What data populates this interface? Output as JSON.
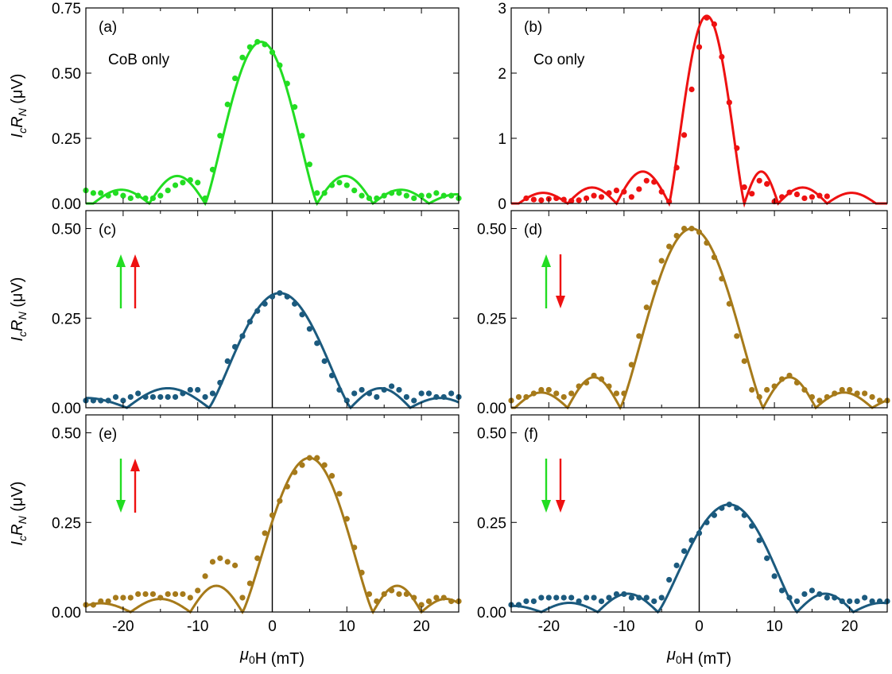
{
  "colors": {
    "green": "#22dd22",
    "red": "#ee1111",
    "blue": "#1b5a7e",
    "brown": "#a67a1a",
    "axis": "#000000"
  },
  "labels": {
    "xlabel_mu": "μ",
    "xlabel_sub": "0",
    "xlabel_rest": "H (mT)",
    "ylabel_I": "I",
    "ylabel_c": "c",
    "ylabel_R": "R",
    "ylabel_N": "N",
    "ylabel_unit": " (μV)"
  },
  "chart_data": [
    {
      "id": "a",
      "panel_label": "(a)",
      "annotation": "CoB only",
      "type": "scatter+line",
      "color": "green",
      "xlim": [
        -25,
        25
      ],
      "ylim": [
        0,
        0.75
      ],
      "yticks": [
        "0.00",
        "0.25",
        "0.50",
        "0.75"
      ],
      "ytick_values": [
        0,
        0.25,
        0.5,
        0.75
      ],
      "xticks": [
        "-20",
        "-10",
        "0",
        "10",
        "20"
      ],
      "xtick_values": [
        -20,
        -10,
        0,
        10,
        20
      ],
      "show_xticklabels": false,
      "arrows": [],
      "fit_peak": 0.62,
      "fit_center": -1.5,
      "fit_zeros": [
        -16.5,
        -9,
        6,
        13.5,
        21
      ],
      "series": [
        {
          "kind": "measured",
          "x": [
            -25,
            -24,
            -23,
            -22,
            -21,
            -20,
            -19,
            -18,
            -17,
            -16,
            -15,
            -14,
            -13,
            -12,
            -11,
            -10,
            -9,
            -8,
            -7,
            -6,
            -5,
            -4,
            -3,
            -2,
            -1,
            0,
            1,
            2,
            3,
            4,
            5,
            6,
            7,
            8,
            9,
            10,
            11,
            12,
            13,
            14,
            15,
            16,
            17,
            18,
            19,
            20,
            21,
            22,
            23,
            24,
            25
          ],
          "y": [
            0.05,
            0.04,
            0.04,
            0.03,
            0.04,
            0.03,
            0.02,
            0.03,
            0.02,
            0.02,
            0.03,
            0.05,
            0.07,
            0.08,
            0.09,
            0.08,
            0.02,
            0.13,
            0.26,
            0.38,
            0.48,
            0.56,
            0.6,
            0.62,
            0.61,
            0.58,
            0.53,
            0.46,
            0.37,
            0.26,
            0.15,
            0.04,
            0.04,
            0.07,
            0.08,
            0.07,
            0.05,
            0.03,
            0.02,
            0.02,
            0.03,
            0.04,
            0.04,
            0.03,
            0.02,
            0.03,
            0.03,
            0.04,
            0.03,
            0.03,
            0.02
          ]
        }
      ]
    },
    {
      "id": "b",
      "panel_label": "(b)",
      "annotation": "Co only",
      "type": "scatter+line",
      "color": "red",
      "xlim": [
        -25,
        25
      ],
      "ylim": [
        0,
        3
      ],
      "yticks": [
        "0",
        "1",
        "2",
        "3"
      ],
      "ytick_values": [
        0,
        1,
        2,
        3
      ],
      "xticks": [
        "-20",
        "-10",
        "0",
        "10",
        "20"
      ],
      "xtick_values": [
        -20,
        -10,
        0,
        10,
        20
      ],
      "show_xticklabels": false,
      "arrows": [],
      "fit_peak": 2.88,
      "fit_center": 1.0,
      "fit_zeros": [
        -17.5,
        -11,
        -4,
        6,
        10.5,
        17
      ],
      "series": [
        {
          "kind": "measured",
          "x": [
            -23,
            -22,
            -21,
            -20,
            -19,
            -18,
            -17,
            -16,
            -15,
            -14,
            -13,
            -12,
            -11,
            -10,
            -9,
            -8,
            -7,
            -6,
            -5,
            -4,
            -3,
            -2,
            -1,
            0,
            1,
            2,
            3,
            4,
            5,
            6,
            7,
            8,
            9,
            10,
            11,
            12,
            13,
            14,
            15,
            16,
            17
          ],
          "y": [
            0.08,
            0.06,
            0.05,
            0.07,
            0.08,
            0.06,
            0.04,
            0.05,
            0.08,
            0.12,
            0.1,
            0.16,
            0.2,
            0.18,
            0.1,
            0.22,
            0.35,
            0.33,
            0.18,
            0.03,
            0.55,
            1.05,
            1.75,
            2.4,
            2.85,
            2.75,
            2.25,
            1.55,
            0.85,
            0.25,
            0.15,
            0.35,
            0.3,
            0.03,
            0.1,
            0.17,
            0.14,
            0.08,
            0.1,
            0.12,
            0.11
          ]
        }
      ]
    },
    {
      "id": "c",
      "panel_label": "(c)",
      "annotation": "",
      "type": "scatter+line",
      "color": "blue",
      "xlim": [
        -25,
        25
      ],
      "ylim": [
        0,
        0.55
      ],
      "yticks": [
        "0.00",
        "0.25",
        "0.50"
      ],
      "ytick_values": [
        0,
        0.25,
        0.5
      ],
      "xticks": [
        "-20",
        "-10",
        "0",
        "10",
        "20"
      ],
      "xtick_values": [
        -20,
        -10,
        0,
        10,
        20
      ],
      "show_xticklabels": false,
      "arrows": [
        {
          "dir": "up",
          "color": "green"
        },
        {
          "dir": "up",
          "color": "red"
        }
      ],
      "fit_peak": 0.32,
      "fit_center": 1.0,
      "fit_zeros": [
        -19.5,
        -8.5,
        10.5,
        18.5
      ],
      "series": [
        {
          "kind": "measured",
          "x": [
            -25,
            -24,
            -23,
            -22,
            -21,
            -20,
            -19,
            -18,
            -17,
            -16,
            -15,
            -14,
            -13,
            -12,
            -11,
            -10,
            -9,
            -8,
            -7,
            -6,
            -5,
            -4,
            -3,
            -2,
            -1,
            0,
            1,
            2,
            3,
            4,
            5,
            6,
            7,
            8,
            9,
            10,
            11,
            12,
            13,
            14,
            15,
            16,
            17,
            18,
            19,
            20,
            21,
            22,
            23,
            24,
            25
          ],
          "y": [
            0.02,
            0.02,
            0.02,
            0.02,
            0.03,
            0.02,
            0.03,
            0.04,
            0.03,
            0.03,
            0.03,
            0.03,
            0.03,
            0.04,
            0.05,
            0.05,
            0.03,
            0.04,
            0.07,
            0.13,
            0.17,
            0.2,
            0.24,
            0.27,
            0.29,
            0.31,
            0.32,
            0.31,
            0.29,
            0.26,
            0.22,
            0.18,
            0.13,
            0.09,
            0.05,
            0.02,
            0.04,
            0.05,
            0.04,
            0.03,
            0.05,
            0.06,
            0.05,
            0.03,
            0.02,
            0.04,
            0.04,
            0.03,
            0.03,
            0.04,
            0.03
          ]
        }
      ]
    },
    {
      "id": "d",
      "panel_label": "(d)",
      "annotation": "",
      "type": "scatter+line",
      "color": "brown",
      "xlim": [
        -25,
        25
      ],
      "ylim": [
        0,
        0.55
      ],
      "yticks": [
        "0.00",
        "0.25",
        "0.50"
      ],
      "ytick_values": [
        0,
        0.25,
        0.5
      ],
      "xticks": [
        "-20",
        "-10",
        "0",
        "10",
        "20"
      ],
      "xtick_values": [
        -20,
        -10,
        0,
        10,
        20
      ],
      "show_xticklabels": false,
      "arrows": [
        {
          "dir": "up",
          "color": "green"
        },
        {
          "dir": "down",
          "color": "red"
        }
      ],
      "fit_peak": 0.5,
      "fit_center": -1.0,
      "fit_zeros": [
        -17.5,
        -10.5,
        8.5,
        15.5,
        23
      ],
      "series": [
        {
          "kind": "measured",
          "x": [
            -25,
            -24,
            -23,
            -22,
            -21,
            -20,
            -19,
            -18,
            -17,
            -16,
            -15,
            -14,
            -13,
            -12,
            -11,
            -10,
            -9,
            -8,
            -7,
            -6,
            -5,
            -4,
            -3,
            -2,
            -1,
            0,
            1,
            2,
            3,
            4,
            5,
            6,
            7,
            8,
            9,
            10,
            11,
            12,
            13,
            14,
            15,
            16,
            17,
            18,
            19,
            20,
            21,
            22,
            23,
            24,
            25
          ],
          "y": [
            0.02,
            0.03,
            0.03,
            0.04,
            0.05,
            0.05,
            0.04,
            0.03,
            0.04,
            0.06,
            0.07,
            0.09,
            0.08,
            0.06,
            0.04,
            0.04,
            0.12,
            0.2,
            0.28,
            0.35,
            0.41,
            0.45,
            0.48,
            0.5,
            0.5,
            0.49,
            0.46,
            0.42,
            0.36,
            0.29,
            0.2,
            0.13,
            0.05,
            0.03,
            0.05,
            0.06,
            0.08,
            0.09,
            0.07,
            0.05,
            0.03,
            0.02,
            0.03,
            0.04,
            0.05,
            0.05,
            0.04,
            0.04,
            0.03,
            0.02,
            0.02
          ]
        }
      ]
    },
    {
      "id": "e",
      "panel_label": "(e)",
      "annotation": "",
      "type": "scatter+line",
      "color": "brown",
      "xlim": [
        -25,
        25
      ],
      "ylim": [
        0,
        0.55
      ],
      "yticks": [
        "0.00",
        "0.25",
        "0.50"
      ],
      "ytick_values": [
        0,
        0.25,
        0.5
      ],
      "xticks": [
        "-20",
        "-10",
        "0",
        "10",
        "20"
      ],
      "xtick_values": [
        -20,
        -10,
        0,
        10,
        20
      ],
      "show_xticklabels": true,
      "arrows": [
        {
          "dir": "down",
          "color": "green"
        },
        {
          "dir": "up",
          "color": "red"
        }
      ],
      "fit_peak": 0.43,
      "fit_center": 5.0,
      "fit_zeros": [
        -19,
        -11,
        -4,
        13.5,
        20
      ],
      "series": [
        {
          "kind": "measured",
          "x": [
            -25,
            -24,
            -23,
            -22,
            -21,
            -20,
            -19,
            -18,
            -17,
            -16,
            -15,
            -14,
            -13,
            -12,
            -11,
            -10,
            -9,
            -8,
            -7,
            -6,
            -5,
            -4,
            -3,
            -2,
            -1,
            0,
            1,
            2,
            3,
            4,
            5,
            6,
            7,
            8,
            9,
            10,
            11,
            12,
            13,
            14,
            15,
            16,
            17,
            18,
            19,
            20,
            21,
            22,
            23,
            24,
            25
          ],
          "y": [
            0.02,
            0.02,
            0.03,
            0.03,
            0.04,
            0.04,
            0.04,
            0.05,
            0.05,
            0.05,
            0.04,
            0.05,
            0.05,
            0.05,
            0.04,
            0.06,
            0.1,
            0.14,
            0.15,
            0.14,
            0.13,
            0.04,
            0.08,
            0.15,
            0.22,
            0.27,
            0.31,
            0.35,
            0.39,
            0.41,
            0.43,
            0.43,
            0.41,
            0.38,
            0.33,
            0.26,
            0.18,
            0.11,
            0.05,
            0.03,
            0.05,
            0.06,
            0.05,
            0.05,
            0.04,
            0.02,
            0.03,
            0.04,
            0.04,
            0.03,
            0.03
          ]
        }
      ]
    },
    {
      "id": "f",
      "panel_label": "(f)",
      "annotation": "",
      "type": "scatter+line",
      "color": "blue",
      "xlim": [
        -25,
        25
      ],
      "ylim": [
        0,
        0.55
      ],
      "yticks": [
        "0.00",
        "0.25",
        "0.50"
      ],
      "ytick_values": [
        0,
        0.25,
        0.5
      ],
      "xticks": [
        "-20",
        "-10",
        "0",
        "10",
        "20"
      ],
      "xtick_values": [
        -20,
        -10,
        0,
        10,
        20
      ],
      "show_xticklabels": true,
      "arrows": [
        {
          "dir": "down",
          "color": "green"
        },
        {
          "dir": "down",
          "color": "red"
        }
      ],
      "fit_peak": 0.3,
      "fit_center": 4.0,
      "fit_zeros": [
        -21,
        -13.5,
        -5.5,
        13,
        20.5
      ],
      "series": [
        {
          "kind": "measured",
          "x": [
            -25,
            -24,
            -23,
            -22,
            -21,
            -20,
            -19,
            -18,
            -17,
            -16,
            -15,
            -14,
            -13,
            -12,
            -11,
            -10,
            -9,
            -8,
            -7,
            -6,
            -5,
            -4,
            -3,
            -2,
            -1,
            0,
            1,
            2,
            3,
            4,
            5,
            6,
            7,
            8,
            9,
            10,
            11,
            12,
            13,
            14,
            15,
            16,
            17,
            18,
            19,
            20,
            21,
            22,
            23,
            24,
            25
          ],
          "y": [
            0.02,
            0.02,
            0.03,
            0.03,
            0.04,
            0.04,
            0.04,
            0.04,
            0.04,
            0.03,
            0.04,
            0.04,
            0.03,
            0.04,
            0.05,
            0.05,
            0.04,
            0.04,
            0.04,
            0.03,
            0.04,
            0.09,
            0.13,
            0.17,
            0.2,
            0.22,
            0.25,
            0.27,
            0.29,
            0.3,
            0.29,
            0.27,
            0.24,
            0.2,
            0.15,
            0.1,
            0.06,
            0.04,
            0.03,
            0.05,
            0.06,
            0.05,
            0.04,
            0.04,
            0.03,
            0.03,
            0.03,
            0.04,
            0.03,
            0.03,
            0.03
          ]
        }
      ]
    }
  ]
}
